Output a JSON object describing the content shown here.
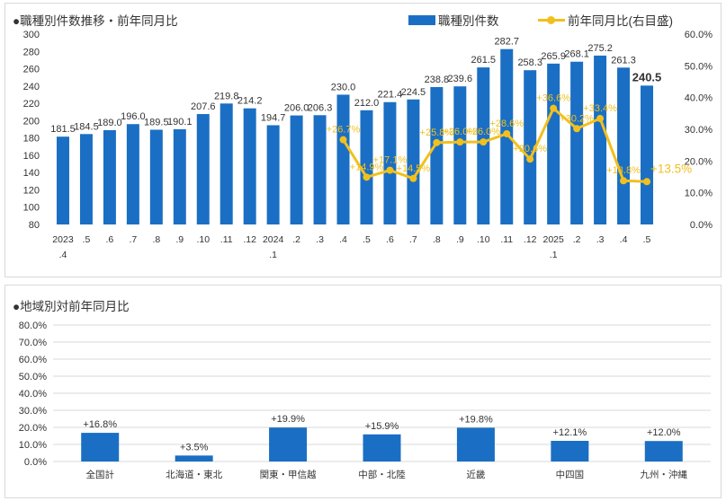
{
  "top_chart": {
    "title": "●職種別件数推移・前年同月比",
    "legend_bar": "職種別件数",
    "legend_line": "前年同月比(右目盛)",
    "colors": {
      "bar": "#1a6fc4",
      "line": "#f2c01e",
      "label": "#333333",
      "grid": "#d9d9d9"
    },
    "left_ticks": [
      "300",
      "280",
      "260",
      "240",
      "220",
      "200",
      "180",
      "160",
      "140",
      "120",
      "100",
      "80"
    ],
    "right_ticks": [
      "60.0%",
      "50.0%",
      "40.0%",
      "30.0%",
      "20.0%",
      "10.0%",
      "0.0%"
    ]
  },
  "bottom_chart": {
    "title": "●地域別対前年同月比",
    "colors": {
      "bar": "#1a6fc4",
      "grid": "#d9d9d9"
    },
    "y_ticks": [
      "80.0%",
      "70.0%",
      "60.0%",
      "50.0%",
      "40.0%",
      "30.0%",
      "20.0%",
      "10.0%",
      "0.0%"
    ]
  },
  "chart_data": [
    {
      "type": "bar",
      "title": "●職種別件数推移・前年同月比",
      "categories": [
        {
          "l1": "2023",
          "l2": ".4"
        },
        {
          "l1": ".5",
          "l2": ""
        },
        {
          "l1": ".6",
          "l2": ""
        },
        {
          "l1": ".7",
          "l2": ""
        },
        {
          "l1": ".8",
          "l2": ""
        },
        {
          "l1": ".9",
          "l2": ""
        },
        {
          "l1": ".10",
          "l2": ""
        },
        {
          "l1": ".11",
          "l2": ""
        },
        {
          "l1": ".12",
          "l2": ""
        },
        {
          "l1": "2024",
          "l2": ".1"
        },
        {
          "l1": ".2",
          "l2": ""
        },
        {
          "l1": ".3",
          "l2": ""
        },
        {
          "l1": ".4",
          "l2": ""
        },
        {
          "l1": ".5",
          "l2": ""
        },
        {
          "l1": ".6",
          "l2": ""
        },
        {
          "l1": ".7",
          "l2": ""
        },
        {
          "l1": ".8",
          "l2": ""
        },
        {
          "l1": ".9",
          "l2": ""
        },
        {
          "l1": ".10",
          "l2": ""
        },
        {
          "l1": ".11",
          "l2": ""
        },
        {
          "l1": ".12",
          "l2": ""
        },
        {
          "l1": "2025",
          "l2": ".1"
        },
        {
          "l1": ".2",
          "l2": ""
        },
        {
          "l1": ".3",
          "l2": ""
        },
        {
          "l1": ".4",
          "l2": ""
        },
        {
          "l1": ".5",
          "l2": ""
        }
      ],
      "series": [
        {
          "name": "職種別件数",
          "axis": "left",
          "values": [
            181.5,
            184.5,
            189.0,
            196.0,
            189.5,
            190.1,
            207.6,
            219.8,
            214.2,
            194.7,
            206.0,
            206.3,
            230.0,
            212.0,
            221.4,
            224.5,
            238.8,
            239.6,
            261.5,
            282.7,
            258.3,
            265.9,
            268.1,
            275.2,
            261.3,
            240.5
          ],
          "labels": [
            "181.5",
            "184.5",
            "189.0",
            "196.0",
            "189.5",
            "190.1",
            "207.6",
            "219.8",
            "214.2",
            "194.7",
            "206.0",
            "206.3",
            "230.0",
            "212.0",
            "221.4",
            "224.5",
            "238.8",
            "239.6",
            "261.5",
            "282.7",
            "258.3",
            "265.9",
            "268.1",
            "275.2",
            "261.3",
            "240.5"
          ]
        },
        {
          "name": "前年同月比(右目盛)",
          "axis": "right",
          "type": "line",
          "values": [
            null,
            null,
            null,
            null,
            null,
            null,
            null,
            null,
            null,
            null,
            null,
            null,
            26.7,
            14.9,
            17.1,
            14.5,
            25.8,
            26.0,
            26.0,
            28.6,
            20.6,
            36.6,
            30.2,
            33.4,
            13.8,
            13.5
          ],
          "labels": [
            "",
            "",
            "",
            "",
            "",
            "",
            "",
            "",
            "",
            "",
            "",
            "",
            "+26.7%",
            "+14.9%",
            "+17.1%",
            "+14.5%",
            "+25.8%",
            "+26.0%",
            "+26.0%",
            "+28.6%",
            "+20.6%",
            "+36.6%",
            "+30.2%",
            "+33.4%",
            "+13.8%",
            "+13.5%"
          ]
        }
      ],
      "ylim_left": [
        80,
        300
      ],
      "ylim_right": [
        0,
        60
      ],
      "legend": "top-right",
      "grid": false
    },
    {
      "type": "bar",
      "title": "●地域別対前年同月比",
      "categories": [
        "全国計",
        "北海道・東北",
        "関東・甲信越",
        "中部・北陸",
        "近畿",
        "中四国",
        "九州・沖縄"
      ],
      "values": [
        16.8,
        3.5,
        19.9,
        15.9,
        19.8,
        12.1,
        12.0
      ],
      "labels": [
        "+16.8%",
        "+3.5%",
        "+19.9%",
        "+15.9%",
        "+19.8%",
        "+12.1%",
        "+12.0%"
      ],
      "ylim": [
        0,
        80
      ],
      "grid": true
    }
  ]
}
